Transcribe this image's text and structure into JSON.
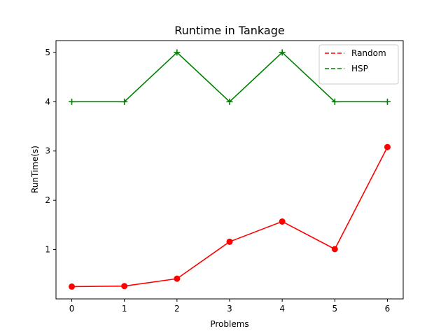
{
  "chart_data": {
    "type": "line",
    "title": "Runtime in Tankage",
    "xlabel": "Problems",
    "ylabel": "RunTime(s)",
    "x": [
      0,
      1,
      2,
      3,
      4,
      5,
      6
    ],
    "xlim": [
      -0.3,
      6.3
    ],
    "ylim": [
      0.0,
      5.24
    ],
    "xticks": [
      0,
      1,
      2,
      3,
      4,
      5,
      6
    ],
    "yticks": [
      1,
      2,
      3,
      4,
      5
    ],
    "grid": false,
    "legend_position": "top-right",
    "series": [
      {
        "name": "Random",
        "color": "#ff0000",
        "marker": "circle",
        "legend_style": "dashed",
        "values": [
          0.25,
          0.26,
          0.41,
          1.16,
          1.57,
          1.01,
          3.08
        ]
      },
      {
        "name": "HSP",
        "color": "#008000",
        "marker": "plus",
        "legend_style": "dashed",
        "values": [
          4,
          4,
          5,
          4,
          5,
          4,
          4
        ]
      }
    ]
  }
}
